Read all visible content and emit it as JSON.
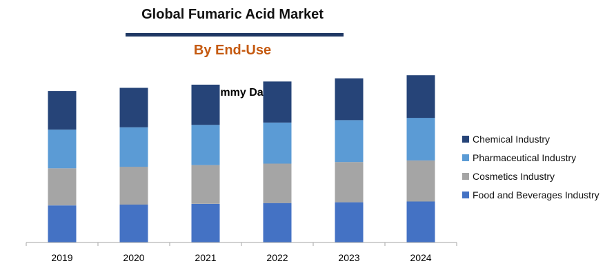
{
  "header": {
    "title": "Global Fumaric Acid Market",
    "subtitle": "By End-Use",
    "title_rule_color": "#1f3864",
    "subtitle_color": "#c55a11"
  },
  "chart_data": {
    "type": "bar",
    "stacked": true,
    "title": "Dummy Data",
    "categories": [
      "2019",
      "2020",
      "2021",
      "2022",
      "2023",
      "2024"
    ],
    "series": [
      {
        "name": "Food and Beverages Industry",
        "color": "#4472c4",
        "values": [
          47,
          48,
          49,
          50,
          51,
          52
        ]
      },
      {
        "name": "Cosmetics Industry",
        "color": "#a5a5a5",
        "values": [
          47,
          48,
          49,
          50,
          51,
          52
        ]
      },
      {
        "name": "Pharmaceutical Industry",
        "color": "#5b9bd5",
        "values": [
          49,
          50,
          51,
          52,
          53,
          54
        ]
      },
      {
        "name": "Chemical Industry",
        "color": "#264478",
        "values": [
          49,
          50,
          51,
          52,
          53,
          54
        ]
      }
    ],
    "ylim": [
      0,
      220
    ],
    "y_axis_visible": false,
    "grid": false,
    "legend_position": "right",
    "legend_order": [
      "Chemical Industry",
      "Pharmaceutical Industry",
      "Cosmetics Industry",
      "Food and Beverages Industry"
    ],
    "axis_color": "#a6a6a6"
  }
}
